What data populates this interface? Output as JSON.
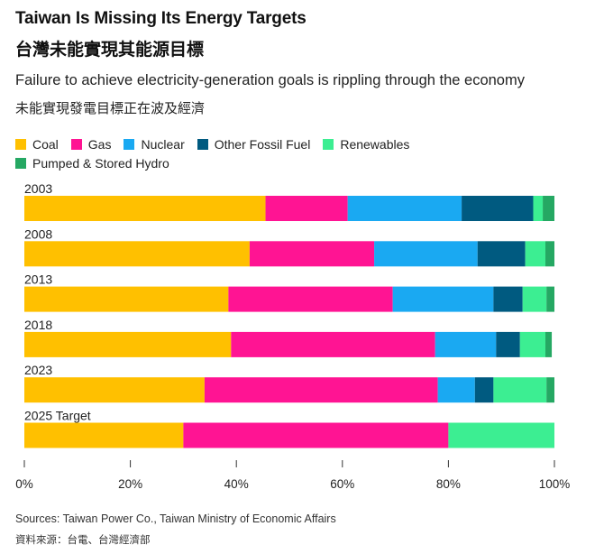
{
  "title": "Taiwan Is Missing Its Energy Targets",
  "title_zh": "台灣未能實現其能源目標",
  "subtitle": "Failure to achieve electricity-generation goals is rippling through the economy",
  "subtitle_zh": "未能實現發電目標正在波及經濟",
  "source": "Sources: Taiwan Power Co., Taiwan Ministry of Economic Affairs",
  "source_zh": "資料來源：台電、台灣經濟部",
  "chart_data": {
    "type": "bar",
    "orientation": "horizontal",
    "stacked": true,
    "percent": true,
    "categories": [
      "2003",
      "2008",
      "2013",
      "2018",
      "2023",
      "2025 Target"
    ],
    "series": [
      {
        "name": "Coal",
        "color": "#FFC000",
        "values": [
          45.5,
          42.5,
          38.5,
          39,
          34,
          30
        ]
      },
      {
        "name": "Gas",
        "color": "#FF1493",
        "values": [
          15.5,
          23.5,
          31,
          38.5,
          44,
          50
        ]
      },
      {
        "name": "Nuclear",
        "color": "#1AA9F2",
        "values": [
          21.5,
          19.5,
          19,
          11.5,
          7,
          0
        ]
      },
      {
        "name": "Other Fossil Fuel",
        "color": "#005A80",
        "values": [
          13.5,
          9,
          5.5,
          4.5,
          3.5,
          0
        ]
      },
      {
        "name": "Renewables",
        "color": "#3CEE92",
        "values": [
          1.8,
          3.8,
          4.5,
          4.8,
          10,
          20
        ]
      },
      {
        "name": "Pumped & Stored Hydro",
        "color": "#25A863",
        "values": [
          2.2,
          1.7,
          1.5,
          1.2,
          1.5,
          0
        ]
      }
    ],
    "xlim": [
      0,
      100
    ],
    "xticks": [
      "0%",
      "20%",
      "40%",
      "60%",
      "80%",
      "100%"
    ],
    "grid": false,
    "legend_position": "top-left"
  }
}
